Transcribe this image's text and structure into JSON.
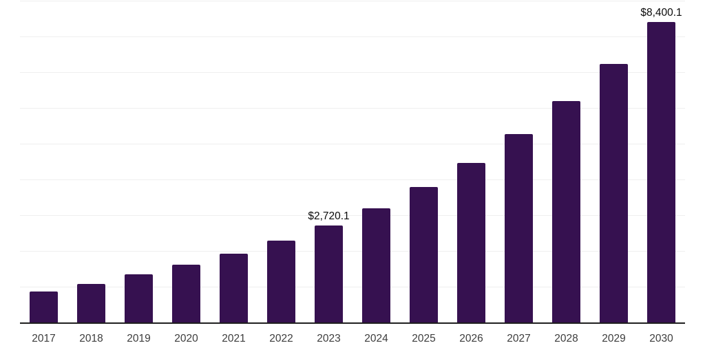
{
  "chart": {
    "background_color": "#ffffff"
  },
  "chart_data": {
    "type": "bar",
    "title": "",
    "xlabel": "",
    "ylabel": "",
    "categories": [
      "2017",
      "2018",
      "2019",
      "2020",
      "2021",
      "2022",
      "2023",
      "2024",
      "2025",
      "2026",
      "2027",
      "2028",
      "2029",
      "2030"
    ],
    "values": [
      860,
      1075,
      1345,
      1610,
      1920,
      2280,
      2720.1,
      3200,
      3795,
      4470,
      5270,
      6190,
      7230,
      8400.1
    ],
    "value_labels": {
      "2023": "$2,720.1",
      "2030": "$8,400.1"
    },
    "ylim": [
      0,
      9000
    ],
    "gridline_interval": 1000,
    "grid": "horizontal-only",
    "legend": "none",
    "bar_color": "#361150",
    "grid_color": "#efefef",
    "axis_line_color": "#1f1f1f",
    "tick_label_color": "#3d3d3d",
    "value_label_color": "#0b0b0b"
  }
}
